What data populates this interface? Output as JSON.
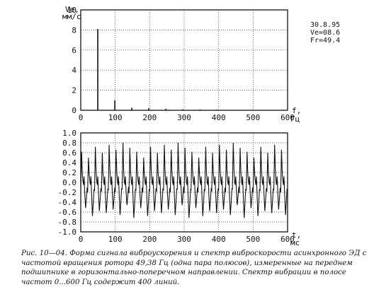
{
  "caption": "Рис. 10—04. Форма сигнала виброускорения и спектр виброскорости асинхронного ЭД с частотой вращения ротора 49,38 Гц (одна пара полюсов), измеренные на переднем подшипнике в горизонтально-поперечном направлении. Спектр вибрации в полосе частот 0...600 Гц содержит 400 линий.",
  "chart_data": [
    {
      "type": "bar",
      "ylabel": "Ve,",
      "yunit": "мм/с",
      "xlabel": "f,",
      "xunit": "Гц",
      "xlim": [
        0,
        600
      ],
      "ylim": [
        0,
        10
      ],
      "xticks": [
        "0",
        "100",
        "200",
        "300",
        "400",
        "500",
        "600"
      ],
      "yticks": [
        "0",
        "2",
        "4",
        "6",
        "8",
        "10"
      ],
      "grid": true,
      "readout": [
        "30.8.95",
        "Ve=08.6",
        "Fr=49.4"
      ],
      "lines": [
        {
          "f": 49.4,
          "v": 8.1
        },
        {
          "f": 98.8,
          "v": 1.0
        },
        {
          "f": 148,
          "v": 0.25
        },
        {
          "f": 197,
          "v": 0.2
        },
        {
          "f": 247,
          "v": 0.15
        },
        {
          "f": 296,
          "v": 0.1
        },
        {
          "f": 346,
          "v": 0.08
        },
        {
          "f": 395,
          "v": 0.06
        }
      ]
    },
    {
      "type": "line",
      "xlabel": "t,",
      "xunit": "мс",
      "xlim": [
        0,
        600
      ],
      "ylim": [
        -1.0,
        1.0
      ],
      "xticks": [
        "0",
        "100",
        "200",
        "300",
        "400",
        "500",
        "600"
      ],
      "yticks": [
        "1.0",
        "0.8",
        "0.6",
        "0.4",
        "0.2",
        "0.0",
        "-0.2",
        "-0.4",
        "-0.6",
        "-0.8",
        "-1.0"
      ],
      "grid": true,
      "cycles": 30,
      "amplitude_top": [
        0.62,
        0.5,
        0.72,
        0.6,
        0.76,
        0.66,
        0.8,
        0.7
      ],
      "amplitude_bottom": [
        -0.52,
        -0.62,
        -0.46,
        -0.68,
        -0.55,
        -0.72,
        -0.58,
        -0.66
      ]
    }
  ]
}
